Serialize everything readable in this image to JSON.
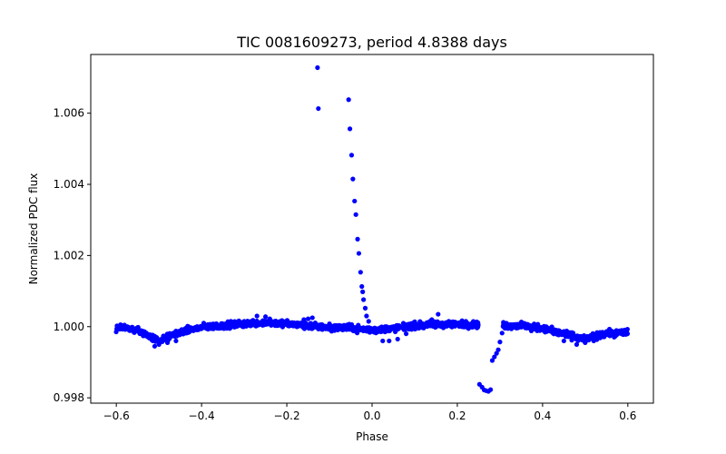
{
  "chart_data": {
    "type": "scatter",
    "title": "TIC 0081609273, period 4.8388 days",
    "xlabel": "Phase",
    "ylabel": "Normalized PDC flux",
    "xlim": [
      -0.66,
      0.66
    ],
    "ylim": [
      0.99785,
      1.00765
    ],
    "xticks": [
      -0.6,
      -0.4,
      -0.2,
      0.0,
      0.2,
      0.4,
      0.6
    ],
    "xtick_labels": [
      "−0.6",
      "−0.4",
      "−0.2",
      "0.0",
      "0.2",
      "0.4",
      "0.6"
    ],
    "yticks": [
      0.998,
      1.0,
      1.002,
      1.004,
      1.006
    ],
    "ytick_labels": [
      "0.998",
      "1.000",
      "1.002",
      "1.004",
      "1.006"
    ],
    "grid": false,
    "marker_color": "#0000ff",
    "baseline_profile": [
      [
        -0.6,
        1.0
      ],
      [
        -0.55,
        0.9999
      ],
      [
        -0.5,
        0.9996
      ],
      [
        -0.45,
        0.99985
      ],
      [
        -0.4,
        0.99998
      ],
      [
        -0.35,
        1.00003
      ],
      [
        -0.3,
        1.00008
      ],
      [
        -0.25,
        1.00012
      ],
      [
        -0.2,
        1.00008
      ],
      [
        -0.15,
        1.00002
      ],
      [
        -0.1,
        0.99998
      ],
      [
        -0.05,
        0.99996
      ],
      [
        0.0,
        0.9999
      ],
      [
        0.05,
        0.99995
      ],
      [
        0.1,
        1.00003
      ],
      [
        0.15,
        1.00006
      ],
      [
        0.2,
        1.00007
      ],
      [
        0.25,
        1.00006
      ],
      [
        0.3,
        1.00005
      ],
      [
        0.35,
        1.00002
      ],
      [
        0.4,
        0.99995
      ],
      [
        0.45,
        0.9998
      ],
      [
        0.5,
        0.99965
      ],
      [
        0.55,
        0.9998
      ],
      [
        0.6,
        0.99985
      ]
    ],
    "points": [
      [
        -0.128,
        1.00728
      ],
      [
        -0.126,
        1.00613
      ],
      [
        -0.055,
        1.00638
      ],
      [
        -0.052,
        1.00556
      ],
      [
        -0.048,
        1.00482
      ],
      [
        -0.045,
        1.00415
      ],
      [
        -0.041,
        1.00353
      ],
      [
        -0.038,
        1.00315
      ],
      [
        -0.034,
        1.00246
      ],
      [
        -0.031,
        1.00206
      ],
      [
        -0.027,
        1.00153
      ],
      [
        -0.024,
        1.00113
      ],
      [
        -0.022,
        1.00098
      ],
      [
        -0.02,
        1.00076
      ],
      [
        -0.016,
        1.00052
      ],
      [
        -0.013,
        1.0003
      ],
      [
        -0.008,
        1.00015
      ],
      [
        0.025,
        0.9996
      ],
      [
        0.04,
        0.9996
      ],
      [
        0.06,
        0.99965
      ],
      [
        0.08,
        0.9998
      ],
      [
        -0.3,
        1.00015
      ],
      [
        -0.27,
        1.0003
      ],
      [
        -0.25,
        1.00028
      ],
      [
        -0.24,
        1.00022
      ],
      [
        -0.16,
        1.0002
      ],
      [
        -0.15,
        1.00022
      ],
      [
        -0.14,
        1.00025
      ],
      [
        -0.1,
        1.00008
      ],
      [
        0.14,
        1.0002
      ],
      [
        0.155,
        1.00035
      ],
      [
        0.18,
        1.00015
      ],
      [
        0.22,
        1.00015
      ],
      [
        -0.51,
        0.99945
      ],
      [
        -0.5,
        0.9995
      ],
      [
        -0.48,
        0.99955
      ],
      [
        -0.46,
        0.9996
      ],
      [
        0.45,
        0.9996
      ],
      [
        0.48,
        0.9995
      ],
      [
        0.5,
        0.99955
      ],
      [
        0.52,
        0.9996
      ],
      [
        0.252,
        0.99838
      ],
      [
        0.258,
        0.9983
      ],
      [
        0.263,
        0.99822
      ],
      [
        0.268,
        0.9982
      ],
      [
        0.273,
        0.99818
      ],
      [
        0.278,
        0.99823
      ],
      [
        0.282,
        0.99905
      ],
      [
        0.287,
        0.99915
      ],
      [
        0.292,
        0.99925
      ],
      [
        0.296,
        0.99935
      ],
      [
        0.3,
        0.99957
      ],
      [
        0.305,
        0.99982
      ]
    ]
  }
}
